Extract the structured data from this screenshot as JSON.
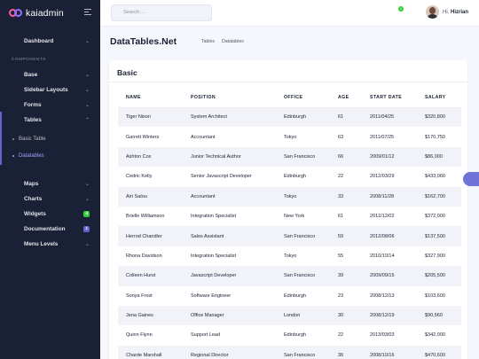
{
  "brand": {
    "name": "kaiadmin"
  },
  "sidebar": {
    "dashboard": "Dashboard",
    "section_label": "COMPONENTS",
    "items": [
      "Base",
      "Sidebar Layouts",
      "Forms",
      "Tables"
    ],
    "tables_sub": [
      "Basic Table",
      "Datatables"
    ],
    "more_items": [
      "Maps",
      "Charts",
      "Widgets",
      "Documentation",
      "Menu Levels"
    ],
    "badges": {
      "widgets": "4",
      "documentation": "1"
    }
  },
  "header": {
    "search_placeholder": "Search ...",
    "notification_count": "4",
    "greeting": "Hi,",
    "user_name": "Hizrian"
  },
  "page": {
    "title": "DataTables.Net",
    "breadcrumb": [
      "Tables",
      "Datatables"
    ]
  },
  "card": {
    "title": "Basic"
  },
  "table": {
    "headers": [
      "NAME",
      "POSITION",
      "OFFICE",
      "AGE",
      "START DATE",
      "SALARY"
    ],
    "rows": [
      [
        "Tiger Nixon",
        "System Architect",
        "Edinburgh",
        "61",
        "2011/04/25",
        "$320,800"
      ],
      [
        "Garrett Winters",
        "Accountant",
        "Tokyo",
        "63",
        "2011/07/25",
        "$170,750"
      ],
      [
        "Ashton Cox",
        "Junior Technical Author",
        "San Francisco",
        "66",
        "2009/01/12",
        "$86,000"
      ],
      [
        "Cedric Kelly",
        "Senior Javascript Developer",
        "Edinburgh",
        "22",
        "2012/03/29",
        "$433,060"
      ],
      [
        "Airi Satou",
        "Accountant",
        "Tokyo",
        "33",
        "2008/11/28",
        "$162,700"
      ],
      [
        "Brielle Williamson",
        "Integration Specialist",
        "New York",
        "61",
        "2012/12/02",
        "$372,000"
      ],
      [
        "Herrod Chandler",
        "Sales Assistant",
        "San Francisco",
        "59",
        "2012/08/06",
        "$137,500"
      ],
      [
        "Rhona Davidson",
        "Integration Specialist",
        "Tokyo",
        "55",
        "2010/10/14",
        "$327,900"
      ],
      [
        "Colleen Hurst",
        "Javascript Developer",
        "San Francisco",
        "39",
        "2009/09/15",
        "$205,500"
      ],
      [
        "Sonya Frost",
        "Software Engineer",
        "Edinburgh",
        "23",
        "2008/12/13",
        "$103,600"
      ],
      [
        "Jena Gaines",
        "Office Manager",
        "London",
        "30",
        "2008/12/19",
        "$90,560"
      ],
      [
        "Quinn Flynn",
        "Support Lead",
        "Edinburgh",
        "22",
        "2013/03/03",
        "$342,000"
      ],
      [
        "Charde Marshall",
        "Regional Director",
        "San Francisco",
        "36",
        "2008/10/16",
        "$470,600"
      ]
    ]
  },
  "colors": {
    "sidebar_bg": "#1a2035",
    "accent": "#6861ce",
    "widgets_badge": "#31ce36",
    "documentation_badge": "#6861ce"
  }
}
